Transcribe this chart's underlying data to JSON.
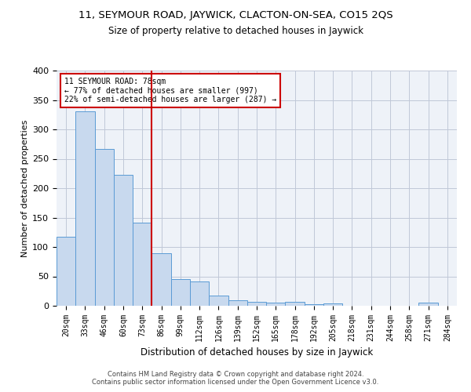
{
  "title": "11, SEYMOUR ROAD, JAYWICK, CLACTON-ON-SEA, CO15 2QS",
  "subtitle": "Size of property relative to detached houses in Jaywick",
  "xlabel": "Distribution of detached houses by size in Jaywick",
  "ylabel": "Number of detached properties",
  "categories": [
    "20sqm",
    "33sqm",
    "46sqm",
    "60sqm",
    "73sqm",
    "86sqm",
    "99sqm",
    "112sqm",
    "126sqm",
    "139sqm",
    "152sqm",
    "165sqm",
    "178sqm",
    "192sqm",
    "205sqm",
    "218sqm",
    "231sqm",
    "244sqm",
    "258sqm",
    "271sqm",
    "284sqm"
  ],
  "values": [
    117,
    331,
    267,
    223,
    142,
    89,
    45,
    42,
    18,
    9,
    7,
    5,
    7,
    3,
    4,
    0,
    0,
    0,
    0,
    5,
    0
  ],
  "bar_color": "#c8d9ee",
  "bar_edge_color": "#5b9bd5",
  "vline_x": 4.5,
  "vline_color": "#cc0000",
  "annotation_line1": "11 SEYMOUR ROAD: 78sqm",
  "annotation_line2": "← 77% of detached houses are smaller (997)",
  "annotation_line3": "22% of semi-detached houses are larger (287) →",
  "annotation_box_color": "#ffffff",
  "annotation_box_edge": "#cc0000",
  "ylim": [
    0,
    400
  ],
  "yticks": [
    0,
    50,
    100,
    150,
    200,
    250,
    300,
    350,
    400
  ],
  "footer1": "Contains HM Land Registry data © Crown copyright and database right 2024.",
  "footer2": "Contains public sector information licensed under the Open Government Licence v3.0.",
  "grid_color": "#c0c8d8",
  "background_color": "#eef2f8"
}
